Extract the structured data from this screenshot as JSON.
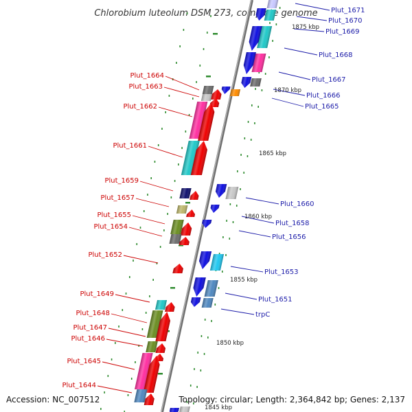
{
  "title": "Chlorobium luteolum DSM 273, complete genome",
  "footer": {
    "accession": "Accession: NC_007512",
    "summary": "Topology: circular; Length: 2,364,842 bp; Genes: 2,137"
  },
  "scale_labels": [
    "1845 kbp",
    "1850 kbp",
    "1855 kbp",
    "1860 kbp",
    "1865 kbp",
    "1870 kbp",
    "1875 kbp"
  ],
  "colors": {
    "backbone": "#8c8c8c",
    "tick": "#2e8b2e",
    "label_left": "#cc0000",
    "label_right": "#1a1aa8",
    "forward_cds": "#ee0000",
    "reverse_cds": "#1010e0"
  },
  "genes_left": [
    {
      "label": "Plut_1664",
      "feature_color": "#6d6d6d"
    },
    {
      "label": "Plut_1663",
      "feature_color": "#c8c8c8"
    },
    {
      "label": "Plut_1662",
      "feature_color": "#ff2fa0"
    },
    {
      "label": "Plut_1661",
      "feature_color": "#20c8c8"
    },
    {
      "label": "Plut_1659",
      "feature_color": "#10106e"
    },
    {
      "label": "Plut_1657",
      "feature_color": "#bdb76b"
    },
    {
      "label": "Plut_1655",
      "feature_color": "#6b8e23"
    },
    {
      "label": "Plut_1654",
      "feature_color": "#6d6d6d"
    },
    {
      "label": "Plut_1652",
      "feature_color": "#ee0000"
    },
    {
      "label": "Plut_1649",
      "feature_color": "#20c8c8"
    },
    {
      "label": "Plut_1648",
      "feature_color": "#6b8e23"
    },
    {
      "label": "Plut_1647",
      "feature_color": "#6b8e23"
    },
    {
      "label": "Plut_1646",
      "feature_color": "#ee0000"
    },
    {
      "label": "Plut_1645",
      "feature_color": "#ff2fa0"
    },
    {
      "label": "Plut_1644",
      "feature_color": "#4f88c0"
    }
  ],
  "genes_right": [
    {
      "label": "Plut_1671",
      "feature_color": "#c8c8ff"
    },
    {
      "label": "Plut_1670",
      "feature_color": "#20c8c8"
    },
    {
      "label": "Plut_1669",
      "feature_color": "#20c8c8"
    },
    {
      "label": "Plut_1668",
      "feature_color": "#ff2fa0"
    },
    {
      "label": "Plut_1667",
      "feature_color": "#1010e0"
    },
    {
      "label": "Plut_1666",
      "feature_color": "#6d6d6d"
    },
    {
      "label": "Plut_1665",
      "feature_color": "#ff8c00"
    },
    {
      "label": "Plut_1660",
      "feature_color": "#c8c8c8"
    },
    {
      "label": "Plut_1658",
      "feature_color": "#1010e0"
    },
    {
      "label": "Plut_1656",
      "feature_color": "#1010e0"
    },
    {
      "label": "Plut_1653",
      "feature_color": "#20c8f0"
    },
    {
      "label": "Plut_1651",
      "feature_color": "#4f88c0"
    },
    {
      "label": "trpC",
      "feature_color": "#4f88c0"
    }
  ]
}
